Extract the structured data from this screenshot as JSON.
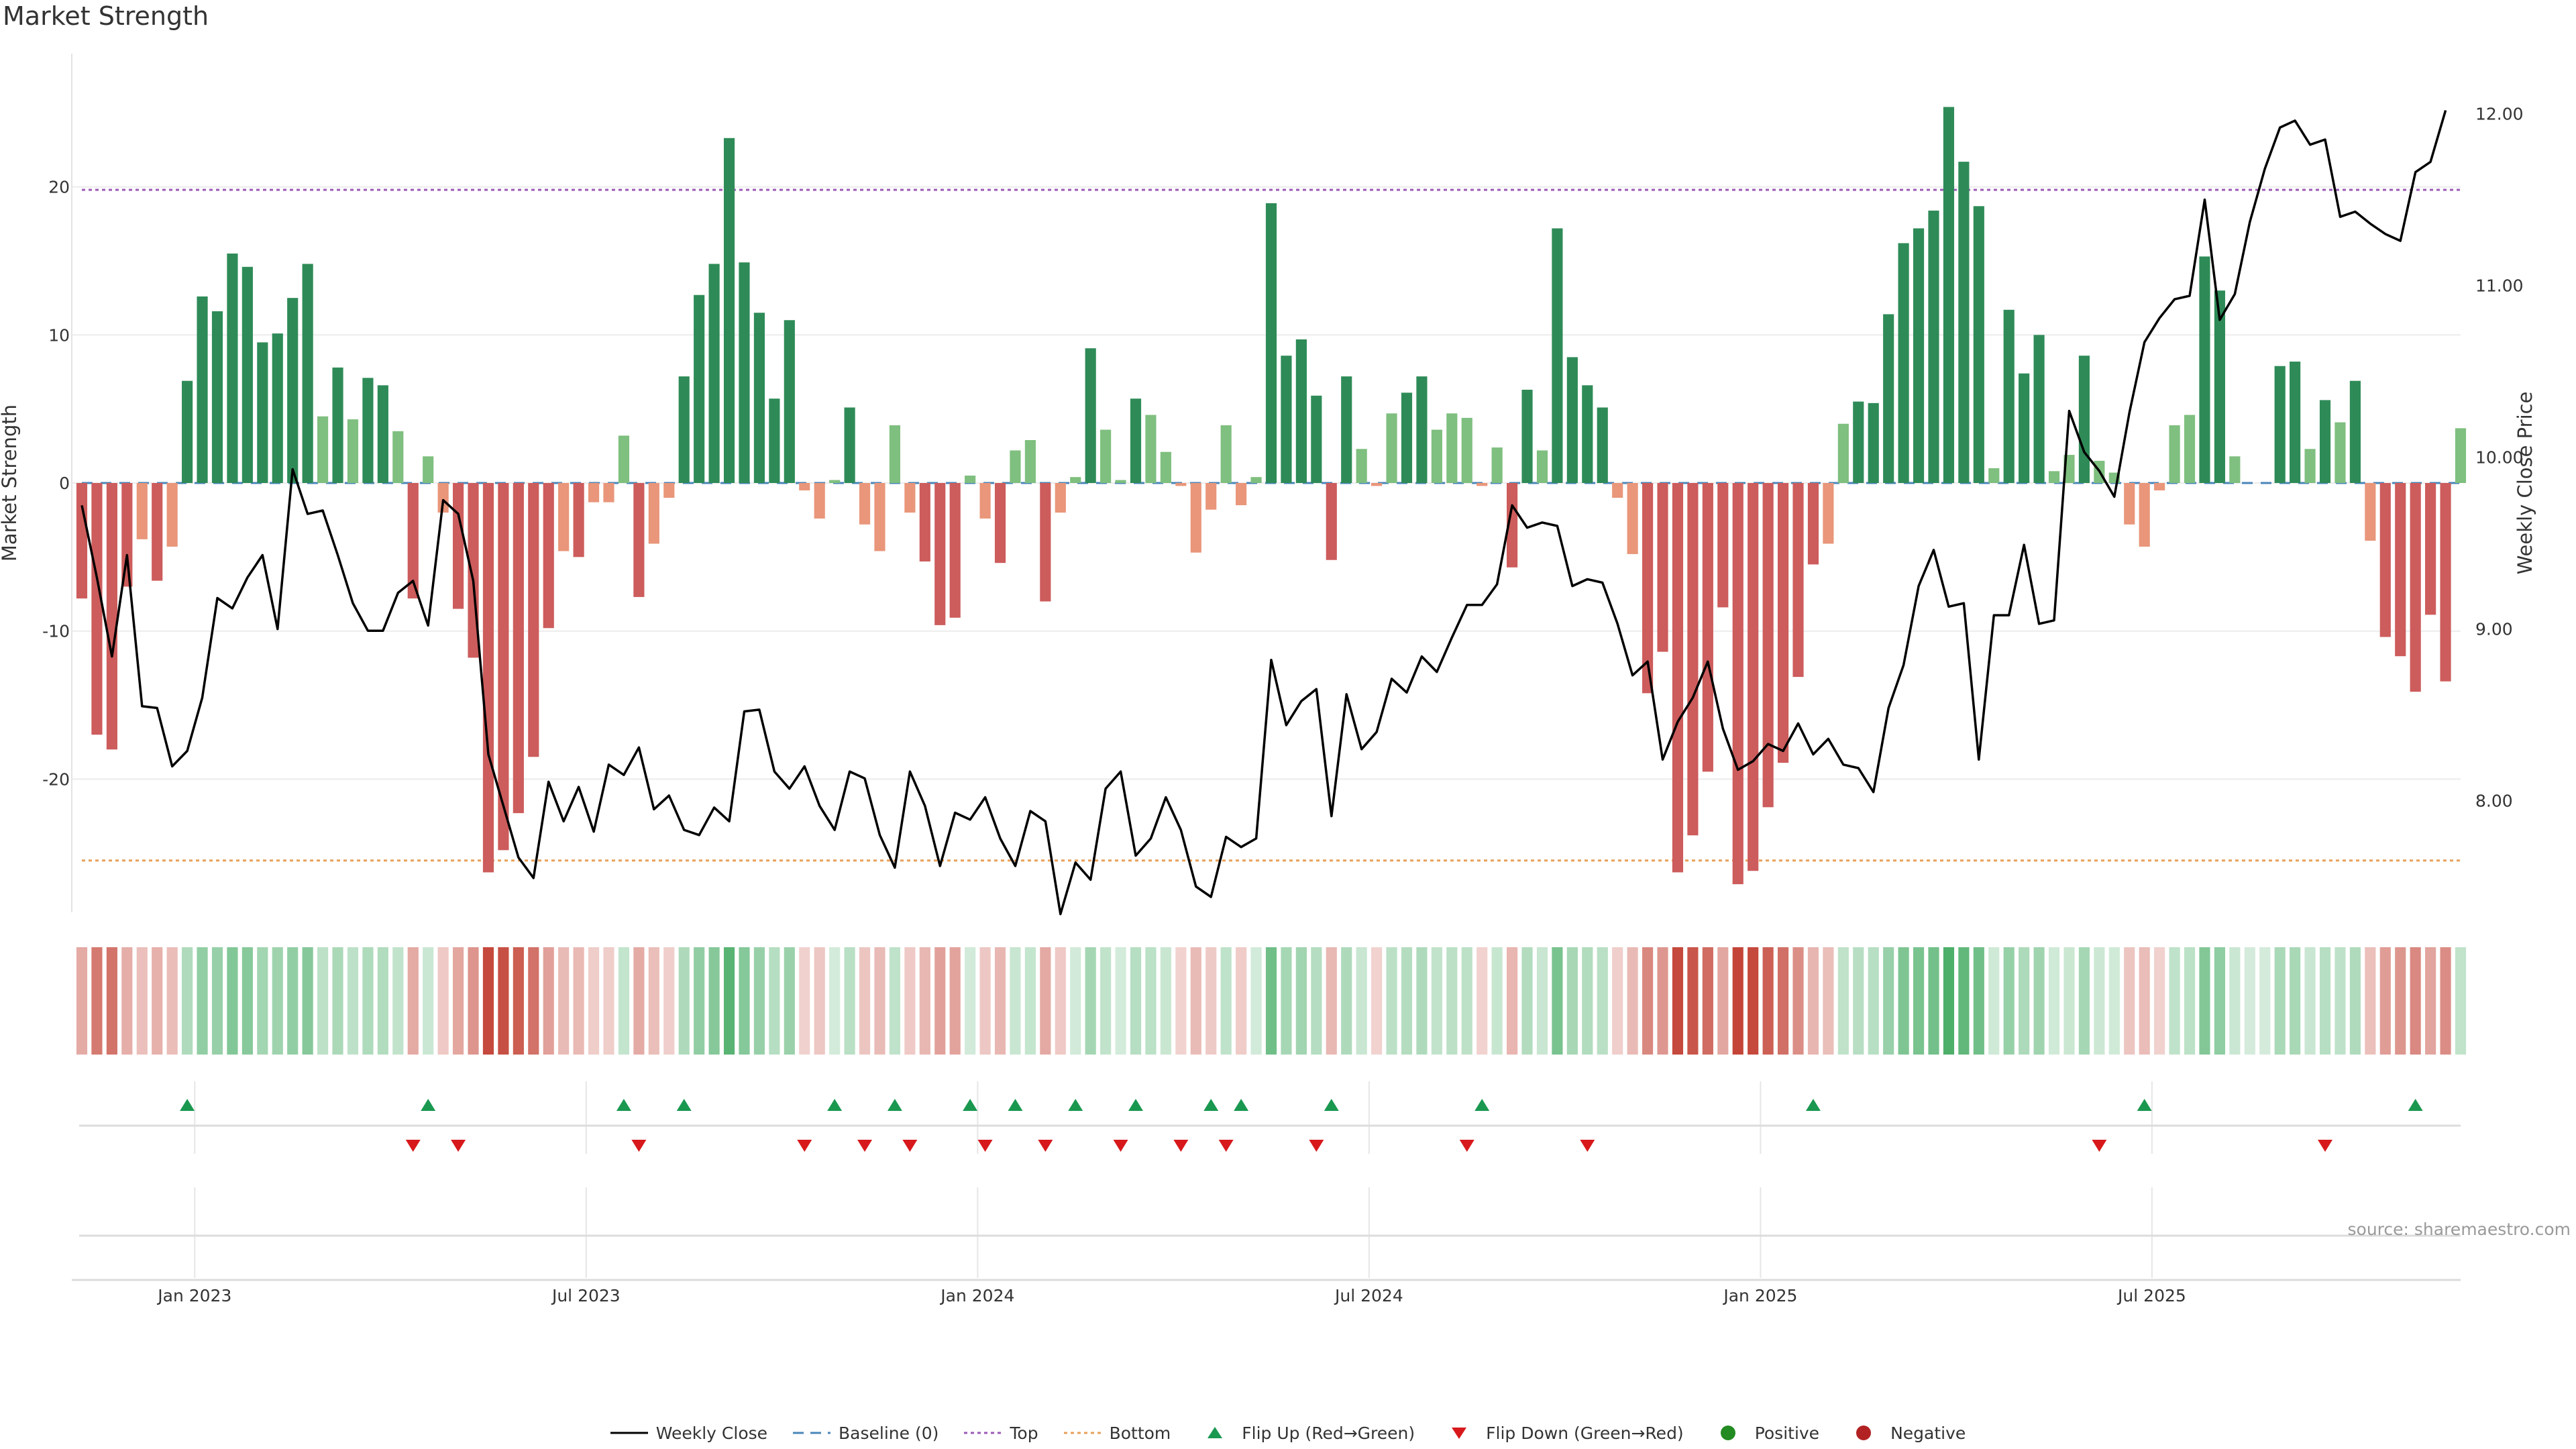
{
  "chart_data": {
    "type": "bar+line",
    "title": "Market Strength",
    "ylabel_left": "Market Strength",
    "ylabel_right": "Weekly Close Price",
    "ylim_left": [
      -29,
      29
    ],
    "ylim_right": [
      7.35,
      12.35
    ],
    "yticks_left": [
      20,
      10,
      0,
      -10,
      -20
    ],
    "yticks_right": [
      12,
      11,
      10,
      9,
      8
    ],
    "ytick_labels_left": [
      "20",
      "10",
      "0",
      "-10",
      "-20"
    ],
    "ytick_labels_right": [
      "12.00",
      "11.00",
      "10.00",
      "9.00",
      "8.00"
    ],
    "top_line": 19.8,
    "bottom_line": -25.5,
    "baseline": 0,
    "x_labels": [
      "Jan 2023",
      "Jul 2023",
      "Jan 2024",
      "Jul 2024",
      "Jan 2025",
      "Jul 2025"
    ],
    "x_label_index": [
      8,
      34,
      60,
      86,
      112,
      138
    ],
    "strength": [
      -7.8,
      -17,
      -18,
      -7,
      -3.8,
      -6.6,
      -4.3,
      6.9,
      12.6,
      11.6,
      15.5,
      14.6,
      9.5,
      10.1,
      12.5,
      14.8,
      4.5,
      7.8,
      4.3,
      7.1,
      6.6,
      3.5,
      -7.8,
      1.8,
      -2,
      -8.5,
      -11.8,
      -26.3,
      -24.8,
      -22.3,
      -18.5,
      -9.8,
      -4.6,
      -5,
      -1.3,
      -1.3,
      3.2,
      -7.7,
      -4.1,
      -1,
      7.2,
      12.7,
      14.8,
      23.3,
      14.9,
      11.5,
      5.7,
      11,
      -0.5,
      -2.4,
      0.2,
      5.1,
      -2.8,
      -4.6,
      3.9,
      -2,
      -5.3,
      -9.6,
      -9.1,
      0.5,
      -2.4,
      -5.4,
      2.2,
      2.9,
      -8,
      -2,
      0.4,
      9.1,
      3.6,
      0.2,
      5.7,
      4.6,
      2.1,
      -0.2,
      -4.7,
      -1.8,
      3.9,
      -1.5,
      0.4,
      18.9,
      8.6,
      9.7,
      5.9,
      -5.2,
      7.2,
      2.3,
      -0.2,
      4.7,
      6.1,
      7.2,
      3.6,
      4.7,
      4.4,
      -0.2,
      2.4,
      -5.7,
      6.3,
      2.2,
      17.2,
      8.5,
      6.6,
      5.1,
      -1,
      -4.8,
      -14.2,
      -11.4,
      -26.3,
      -23.8,
      -19.5,
      -8.4,
      -27.1,
      -26.2,
      -21.9,
      -18.9,
      -13.1,
      -5.5,
      -4.1,
      4,
      5.5,
      5.4,
      11.4,
      16.2,
      17.2,
      18.4,
      25.4,
      21.7,
      18.7,
      1,
      11.7,
      7.4,
      10,
      0.8,
      1.9,
      8.6,
      1.5,
      0.7,
      -2.8,
      -4.3,
      -0.5,
      3.9,
      4.6,
      15.3,
      13,
      1.8,
      0,
      0,
      7.9,
      8.2,
      2.3,
      5.6,
      4.1,
      6.9,
      -3.9,
      -10.4,
      -11.7,
      -14.1,
      -8.9,
      -13.4,
      3.7
    ],
    "weekly_close": [
      9.72,
      9.3,
      8.84,
      9.43,
      8.55,
      8.54,
      8.2,
      8.29,
      8.6,
      9.18,
      9.12,
      9.3,
      9.43,
      9.0,
      9.93,
      9.67,
      9.69,
      9.43,
      9.15,
      8.99,
      8.99,
      9.21,
      9.28,
      9.02,
      9.75,
      9.67,
      9.28,
      8.27,
      7.97,
      7.67,
      7.55,
      8.11,
      7.88,
      8.08,
      7.82,
      8.21,
      8.15,
      8.31,
      7.95,
      8.03,
      7.83,
      7.8,
      7.96,
      7.88,
      8.52,
      8.53,
      8.17,
      8.07,
      8.2,
      7.97,
      7.83,
      8.17,
      8.13,
      7.8,
      7.61,
      8.17,
      7.97,
      7.62,
      7.93,
      7.89,
      8.02,
      7.78,
      7.62,
      7.94,
      7.88,
      7.34,
      7.64,
      7.54,
      8.07,
      8.17,
      7.68,
      7.78,
      8.02,
      7.83,
      7.5,
      7.44,
      7.79,
      7.73,
      7.78,
      8.82,
      8.44,
      8.58,
      8.65,
      7.91,
      8.62,
      8.3,
      8.4,
      8.71,
      8.63,
      8.84,
      8.75,
      8.95,
      9.14,
      9.14,
      9.26,
      9.72,
      9.59,
      9.62,
      9.6,
      9.25,
      9.29,
      9.27,
      9.03,
      8.73,
      8.81,
      8.24,
      8.46,
      8.6,
      8.81,
      8.42,
      8.18,
      8.23,
      8.33,
      8.29,
      8.45,
      8.27,
      8.36,
      8.21,
      8.19,
      8.05,
      8.54,
      8.79,
      9.25,
      9.46,
      9.13,
      9.15,
      8.24,
      9.08,
      9.08,
      9.49,
      9.03,
      9.05,
      10.27,
      10.03,
      9.92,
      9.77,
      10.26,
      10.67,
      10.81,
      10.92,
      10.94,
      11.5,
      10.8,
      10.95,
      11.37,
      11.68,
      11.92,
      11.96,
      11.82,
      11.85,
      11.4,
      11.43,
      11.36,
      11.3,
      11.26,
      11.66,
      11.72,
      12.02
    ],
    "strength_colors": {
      "strong_positive": "#2e8b57",
      "weak_positive": "#7fbf7f",
      "strong_negative": "#cd5c5c",
      "weak_negative": "#e9967a"
    },
    "heat_colors": {
      "positive": "#3aa65a",
      "negative": "#c0392b"
    },
    "flip_up_index": [
      7,
      23,
      36,
      40,
      50,
      54,
      59,
      62,
      66,
      70,
      75,
      77,
      83,
      93,
      115,
      137,
      155
    ],
    "flip_down_index": [
      22,
      25,
      37,
      48,
      52,
      55,
      60,
      64,
      69,
      73,
      76,
      82,
      92,
      100,
      134,
      149
    ],
    "colors": {
      "weekly_close": "#000000",
      "baseline": "#4a86b8",
      "top": "#9b59b6",
      "bottom": "#e8a05a",
      "flip_up": "#1a9850",
      "flip_down": "#d7191c",
      "positive": "#228b22",
      "negative": "#b22222"
    }
  },
  "legend": [
    {
      "key": "weekly_close",
      "label": "Weekly Close"
    },
    {
      "key": "baseline",
      "label": "Baseline (0)"
    },
    {
      "key": "top",
      "label": "Top"
    },
    {
      "key": "bottom",
      "label": "Bottom"
    },
    {
      "key": "flip_up",
      "label": "Flip Up (Red→Green)"
    },
    {
      "key": "flip_down",
      "label": "Flip Down (Green→Red)"
    },
    {
      "key": "positive",
      "label": "Positive"
    },
    {
      "key": "negative",
      "label": "Negative"
    }
  ],
  "source": "source: sharemaestro.com"
}
